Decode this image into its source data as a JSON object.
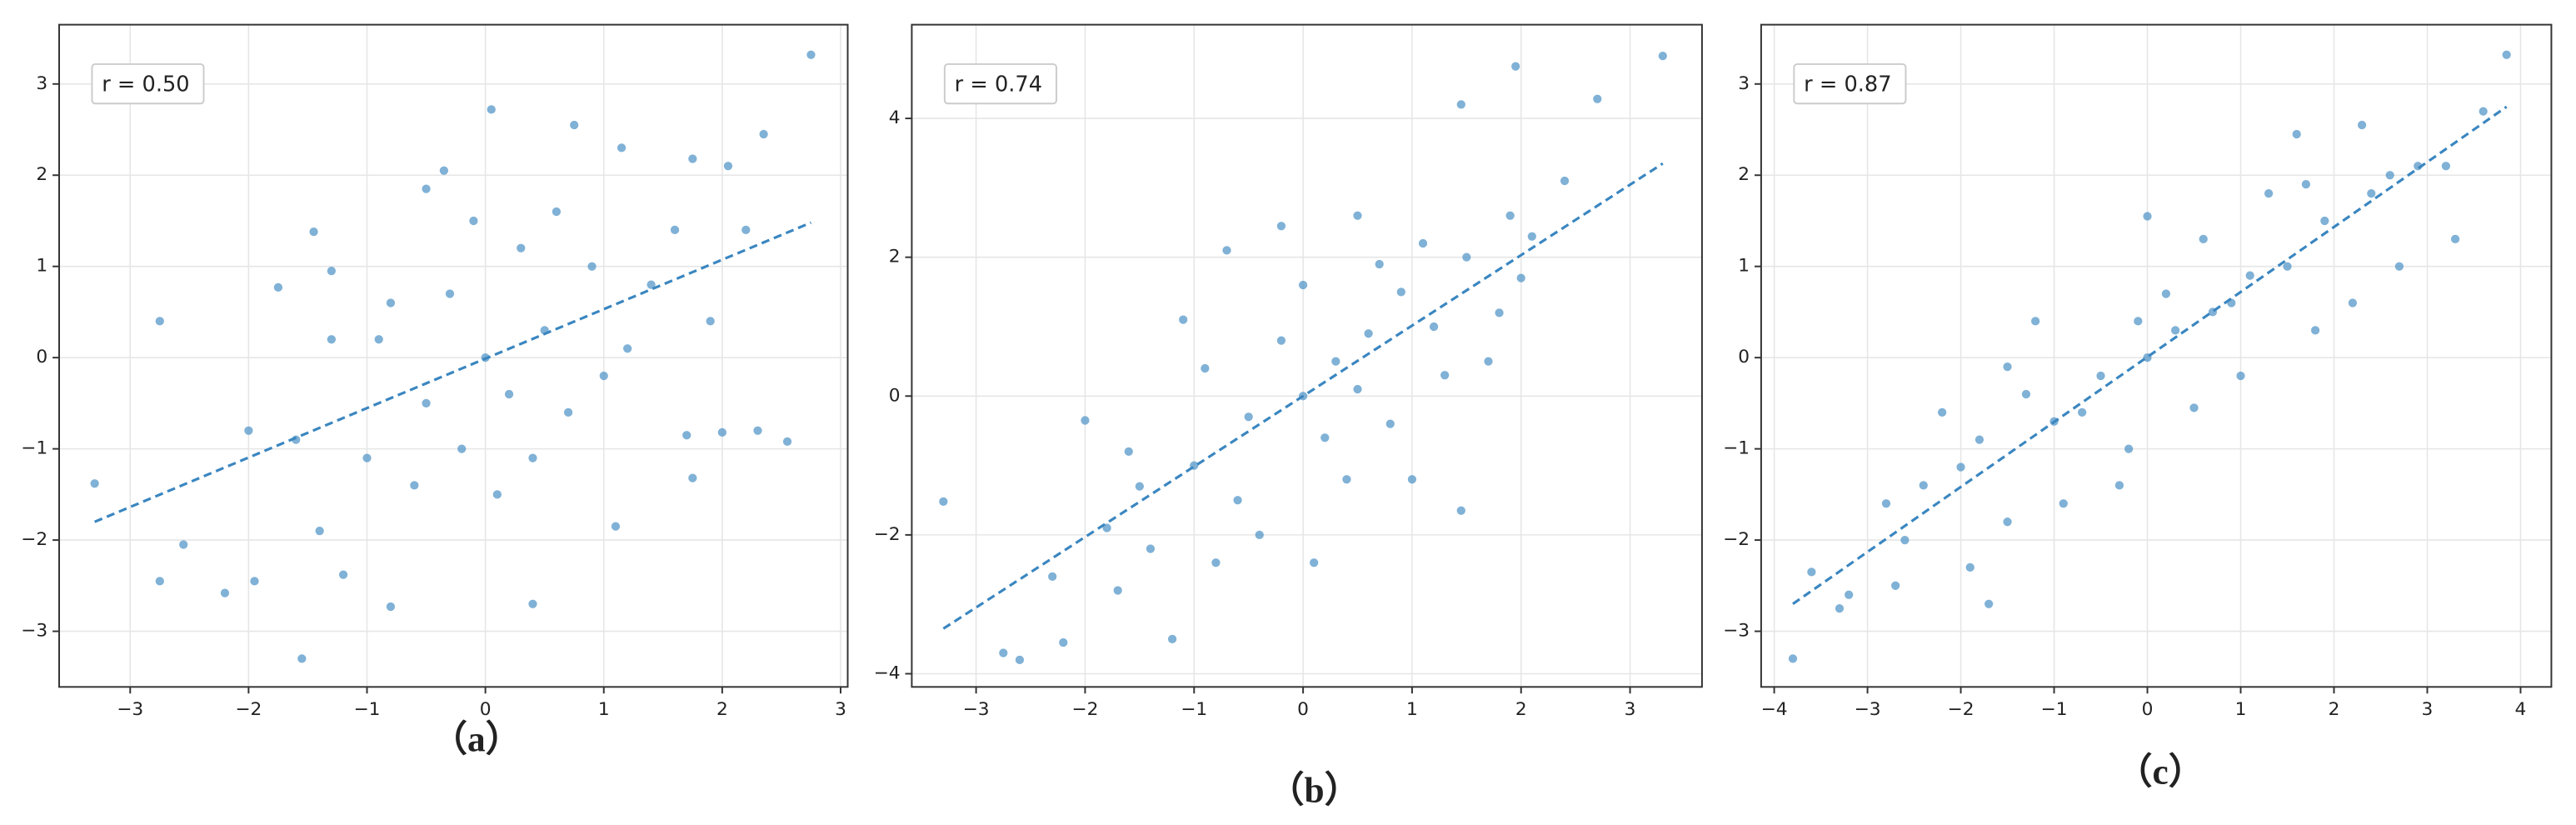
{
  "chart_data": [
    {
      "type": "scatter",
      "annotation": "r = 0.50",
      "caption": "（a）",
      "color": "#4a90c4",
      "fit_color": "#3a86c0",
      "grid": true,
      "xlim": [
        -3.6,
        3.06
      ],
      "ylim": [
        -3.61,
        3.65
      ],
      "xticks": [
        {
          "value": -3,
          "label": "−3"
        },
        {
          "value": -2,
          "label": "−2"
        },
        {
          "value": -1,
          "label": "−1"
        },
        0,
        1,
        2,
        3
      ],
      "yticks": [
        {
          "value": -3,
          "label": "−3"
        },
        {
          "value": -2,
          "label": "−2"
        },
        {
          "value": -1,
          "label": "−1"
        },
        0,
        1,
        2,
        3
      ],
      "x": [
        -3.3,
        -2.75,
        -2.75,
        -2.55,
        -2.2,
        -2.0,
        -1.95,
        -1.75,
        -1.55,
        -1.45,
        -1.3,
        -1.2,
        -0.8,
        -0.5,
        -0.35,
        0.05,
        0.4,
        0.75,
        1.1,
        1.15,
        1.75,
        2.05,
        2.35,
        2.75,
        2.55,
        2.3,
        2.0,
        1.75,
        1.7,
        -1.6,
        -1.0,
        -0.9,
        -0.5,
        -0.3,
        0,
        0.2,
        0.3,
        0.5,
        0.7,
        0.9,
        1.2,
        1.4,
        -0.6,
        -0.2,
        0.1,
        0.6,
        1.0,
        -1.3,
        -0.8,
        1.6,
        -1.4,
        0.4,
        -0.1,
        1.9,
        2.2
      ],
      "values": [
        -1.38,
        0.4,
        -2.45,
        -2.05,
        -2.58,
        -0.8,
        -2.45,
        0.77,
        -3.3,
        1.38,
        0.95,
        -2.38,
        -2.73,
        1.85,
        2.05,
        2.72,
        -2.7,
        2.55,
        -1.85,
        2.3,
        2.18,
        2.1,
        2.45,
        3.32,
        -0.92,
        -0.8,
        -0.82,
        -1.32,
        -0.85,
        -0.9,
        -1.1,
        0.2,
        -0.5,
        0.7,
        0,
        -0.4,
        1.2,
        0.3,
        -0.6,
        1.0,
        0.1,
        0.8,
        -1.4,
        -1.0,
        -1.5,
        1.6,
        -0.2,
        0.2,
        0.6,
        1.4,
        -1.9,
        -1.1,
        1.5,
        0.4,
        1.4
      ],
      "fit_line": {
        "x": [
          -3.3,
          2.75
        ],
        "y": [
          -1.8,
          1.48
        ]
      }
    },
    {
      "type": "scatter",
      "annotation": "r = 0.74",
      "caption": "（b）",
      "color": "#4a90c4",
      "fit_color": "#3a86c0",
      "grid": true,
      "xlim": [
        -3.59,
        3.66
      ],
      "ylim": [
        -4.19,
        5.35
      ],
      "xticks": [
        {
          "value": -3,
          "label": "−3"
        },
        {
          "value": -2,
          "label": "−2"
        },
        {
          "value": -1,
          "label": "−1"
        },
        0,
        1,
        2,
        3
      ],
      "yticks": [
        {
          "value": -4,
          "label": "−4"
        },
        {
          "value": -2,
          "label": "−2"
        },
        0,
        2,
        4
      ],
      "x": [
        -3.3,
        -2.75,
        -2.6,
        -2.2,
        -2.0,
        -1.7,
        -1.5,
        -1.2,
        -0.7,
        -0.2,
        0.5,
        1.45,
        1.95,
        2.7,
        3.3,
        1.45,
        1.0,
        0.1,
        -0.4,
        -1.0,
        -0.5,
        0,
        0.3,
        0.6,
        0.9,
        1.2,
        1.5,
        1.8,
        2.1,
        2.4,
        -1.8,
        -1.4,
        -0.9,
        -0.6,
        -0.2,
        0.2,
        0.5,
        0.8,
        1.1,
        1.7,
        -2.3,
        -1.1,
        0.0,
        0.7,
        1.3,
        2.0,
        -0.8,
        -1.6,
        0.4,
        1.9
      ],
      "values": [
        -1.52,
        -3.7,
        -3.8,
        -3.55,
        -0.35,
        -2.8,
        -1.3,
        -3.5,
        2.1,
        2.45,
        2.6,
        4.2,
        4.75,
        4.28,
        4.9,
        -1.65,
        -1.2,
        -2.4,
        -2.0,
        -1.0,
        -0.3,
        0,
        0.5,
        0.9,
        1.5,
        1.0,
        2.0,
        1.2,
        2.3,
        3.1,
        -1.9,
        -2.2,
        0.4,
        -1.5,
        0.8,
        -0.6,
        0.1,
        -0.4,
        2.2,
        0.5,
        -2.6,
        1.1,
        1.6,
        1.9,
        0.3,
        1.7,
        -2.4,
        -0.8,
        -1.2,
        2.6
      ],
      "fit_line": {
        "x": [
          -3.3,
          3.3
        ],
        "y": [
          -3.35,
          3.35
        ]
      }
    },
    {
      "type": "scatter",
      "annotation": "r = 0.87",
      "caption": "（c）",
      "color": "#4a90c4",
      "fit_color": "#3a86c0",
      "grid": true,
      "xlim": [
        -4.14,
        4.33
      ],
      "ylim": [
        -3.61,
        3.65
      ],
      "xticks": [
        {
          "value": -4,
          "label": "−4"
        },
        {
          "value": -3,
          "label": "−3"
        },
        {
          "value": -2,
          "label": "−2"
        },
        {
          "value": -1,
          "label": "−1"
        },
        0,
        1,
        2,
        3,
        4
      ],
      "yticks": [
        {
          "value": -3,
          "label": "−3"
        },
        {
          "value": -2,
          "label": "−2"
        },
        {
          "value": -1,
          "label": "−1"
        },
        0,
        1,
        2,
        3
      ],
      "x": [
        -3.8,
        -3.6,
        -3.3,
        -3.2,
        -2.7,
        -2.6,
        -2.2,
        -1.7,
        -1.5,
        -1.2,
        0,
        1.6,
        2.3,
        3.3,
        3.85,
        3.6,
        3.2,
        2.7,
        2.2,
        1.8,
        1.0,
        0.5,
        -0.2,
        -0.9,
        -1.5,
        -2.0,
        -1.0,
        -0.5,
        0,
        0.3,
        0.7,
        1.1,
        1.5,
        1.9,
        2.4,
        2.9,
        -2.4,
        -1.3,
        -0.7,
        0.2,
        0.9,
        1.3,
        -0.3,
        0.6,
        -1.8,
        2.6,
        -0.1,
        1.7,
        -2.8,
        -1.9
      ],
      "values": [
        -3.3,
        -2.35,
        -2.75,
        -2.6,
        -2.5,
        -2.0,
        -0.6,
        -2.7,
        -0.1,
        0.4,
        1.55,
        2.45,
        2.55,
        1.3,
        3.32,
        2.7,
        2.1,
        1.0,
        0.6,
        0.3,
        -0.2,
        -0.55,
        -1.0,
        -1.6,
        -1.8,
        -1.2,
        -0.7,
        -0.2,
        0,
        0.3,
        0.5,
        0.9,
        1.0,
        1.5,
        1.8,
        2.1,
        -1.4,
        -0.4,
        -0.6,
        0.7,
        0.6,
        1.8,
        -1.4,
        1.3,
        -0.9,
        2.0,
        0.4,
        1.9,
        -1.6,
        -2.3
      ],
      "fit_line": {
        "x": [
          -3.8,
          3.85
        ],
        "y": [
          -2.7,
          2.75
        ]
      }
    }
  ]
}
